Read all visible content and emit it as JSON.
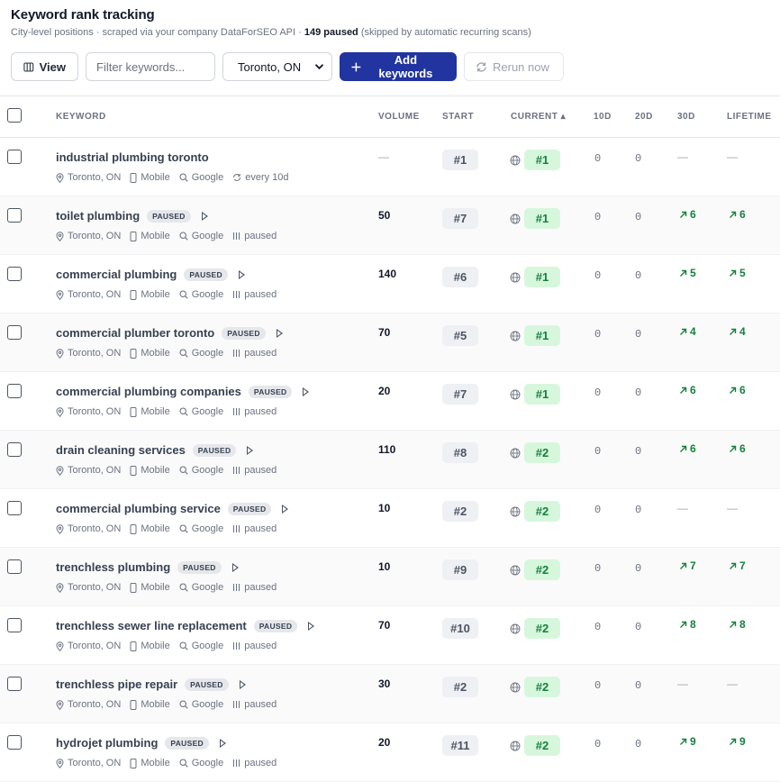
{
  "header": {
    "title": "Keyword rank tracking",
    "subtitle_prefix": "City-level positions · scraped via your company DataForSEO API · ",
    "paused_count": "149 paused",
    "subtitle_suffix": " (skipped by automatic recurring scans)"
  },
  "toolbar": {
    "view_label": "View",
    "filter_placeholder": "Filter keywords...",
    "location_value": "Toronto, ON",
    "add_label": "Add keywords",
    "rerun_label": "Rerun now"
  },
  "columns": {
    "keyword": "KEYWORD",
    "volume": "VOLUME",
    "start": "START",
    "current": "CURRENT ▴",
    "d10": "10D",
    "d20": "20D",
    "d30": "30D",
    "lifetime": "LIFETIME"
  },
  "colors": {
    "primary": "#2234a0",
    "current_bg": "#d7f7dd",
    "current_text": "#15803d"
  },
  "rows": [
    {
      "keyword": "industrial plumbing toronto",
      "paused": false,
      "location": "Toronto, ON",
      "device": "Mobile",
      "engine": "Google",
      "schedule": "every 10d",
      "volume": "—",
      "start": "#1",
      "current": "#1",
      "d10": "0",
      "d20": "0",
      "d30": "—",
      "lifetime": "—"
    },
    {
      "keyword": "toilet plumbing",
      "paused": true,
      "badge": "PAUSED",
      "location": "Toronto, ON",
      "device": "Mobile",
      "engine": "Google",
      "schedule": "paused",
      "volume": "50",
      "start": "#7",
      "current": "#1",
      "d10": "0",
      "d20": "0",
      "d30": "6",
      "lifetime": "6"
    },
    {
      "keyword": "commercial plumbing",
      "paused": true,
      "badge": "PAUSED",
      "location": "Toronto, ON",
      "device": "Mobile",
      "engine": "Google",
      "schedule": "paused",
      "volume": "140",
      "start": "#6",
      "current": "#1",
      "d10": "0",
      "d20": "0",
      "d30": "5",
      "lifetime": "5"
    },
    {
      "keyword": "commercial plumber toronto",
      "paused": true,
      "badge": "PAUSED",
      "location": "Toronto, ON",
      "device": "Mobile",
      "engine": "Google",
      "schedule": "paused",
      "volume": "70",
      "start": "#5",
      "current": "#1",
      "d10": "0",
      "d20": "0",
      "d30": "4",
      "lifetime": "4"
    },
    {
      "keyword": "commercial plumbing companies",
      "paused": true,
      "badge": "PAUSED",
      "location": "Toronto, ON",
      "device": "Mobile",
      "engine": "Google",
      "schedule": "paused",
      "volume": "20",
      "start": "#7",
      "current": "#1",
      "d10": "0",
      "d20": "0",
      "d30": "6",
      "lifetime": "6"
    },
    {
      "keyword": "drain cleaning services",
      "paused": true,
      "badge": "PAUSED",
      "location": "Toronto, ON",
      "device": "Mobile",
      "engine": "Google",
      "schedule": "paused",
      "volume": "110",
      "start": "#8",
      "current": "#2",
      "d10": "0",
      "d20": "0",
      "d30": "6",
      "lifetime": "6"
    },
    {
      "keyword": "commercial plumbing service",
      "paused": true,
      "badge": "PAUSED",
      "location": "Toronto, ON",
      "device": "Mobile",
      "engine": "Google",
      "schedule": "paused",
      "volume": "10",
      "start": "#2",
      "current": "#2",
      "d10": "0",
      "d20": "0",
      "d30": "—",
      "lifetime": "—"
    },
    {
      "keyword": "trenchless plumbing",
      "paused": true,
      "badge": "PAUSED",
      "location": "Toronto, ON",
      "device": "Mobile",
      "engine": "Google",
      "schedule": "paused",
      "volume": "10",
      "start": "#9",
      "current": "#2",
      "d10": "0",
      "d20": "0",
      "d30": "7",
      "lifetime": "7"
    },
    {
      "keyword": "trenchless sewer line replacement",
      "paused": true,
      "badge": "PAUSED",
      "location": "Toronto, ON",
      "device": "Mobile",
      "engine": "Google",
      "schedule": "paused",
      "volume": "70",
      "start": "#10",
      "current": "#2",
      "d10": "0",
      "d20": "0",
      "d30": "8",
      "lifetime": "8"
    },
    {
      "keyword": "trenchless pipe repair",
      "paused": true,
      "badge": "PAUSED",
      "location": "Toronto, ON",
      "device": "Mobile",
      "engine": "Google",
      "schedule": "paused",
      "volume": "30",
      "start": "#2",
      "current": "#2",
      "d10": "0",
      "d20": "0",
      "d30": "—",
      "lifetime": "—"
    },
    {
      "keyword": "hydrojet plumbing",
      "paused": true,
      "badge": "PAUSED",
      "location": "Toronto, ON",
      "device": "Mobile",
      "engine": "Google",
      "schedule": "paused",
      "volume": "20",
      "start": "#11",
      "current": "#2",
      "d10": "0",
      "d20": "0",
      "d30": "9",
      "lifetime": "9"
    }
  ]
}
